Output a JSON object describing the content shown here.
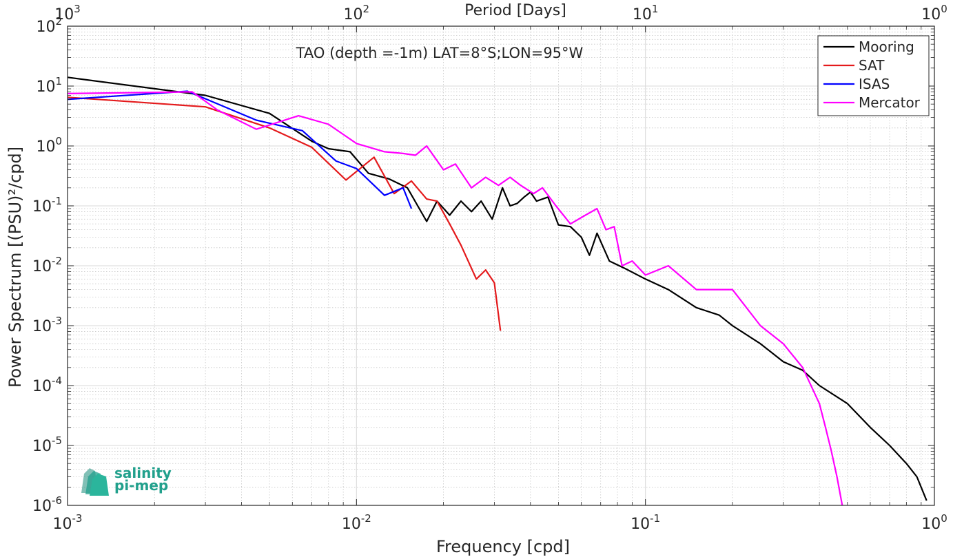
{
  "chart_data": {
    "type": "line",
    "title": "TAO (depth =-1m) LAT=8°S;LON=95°W",
    "xlabel": "Frequency [cpd]",
    "ylabel": "Power Spectrum [(PSU)²/cpd]",
    "x2label": "Period [Days]",
    "xscale": "log",
    "yscale": "log",
    "xlim": [
      0.001,
      1
    ],
    "ylim": [
      1e-06,
      100
    ],
    "x_ticks": [
      {
        "base": "10",
        "exp": "-3"
      },
      {
        "base": "10",
        "exp": "-2"
      },
      {
        "base": "10",
        "exp": "-1"
      },
      {
        "base": "10",
        "exp": "0"
      }
    ],
    "x2_ticks": [
      {
        "base": "10",
        "exp": "3"
      },
      {
        "base": "10",
        "exp": "2"
      },
      {
        "base": "10",
        "exp": "1"
      },
      {
        "base": "10",
        "exp": "0"
      }
    ],
    "y_ticks": [
      {
        "base": "10",
        "exp": "2"
      },
      {
        "base": "10",
        "exp": "1"
      },
      {
        "base": "10",
        "exp": "0"
      },
      {
        "base": "10",
        "exp": "-1"
      },
      {
        "base": "10",
        "exp": "-2"
      },
      {
        "base": "10",
        "exp": "-3"
      },
      {
        "base": "10",
        "exp": "-4"
      },
      {
        "base": "10",
        "exp": "-5"
      },
      {
        "base": "10",
        "exp": "-6"
      }
    ],
    "grid": true,
    "legend_position": "top-right",
    "series": [
      {
        "name": "Mooring",
        "color": "#000000",
        "x": [
          0.001,
          0.003,
          0.005,
          0.007,
          0.008,
          0.0095,
          0.011,
          0.013,
          0.015,
          0.0165,
          0.0175,
          0.019,
          0.021,
          0.023,
          0.025,
          0.027,
          0.0295,
          0.032,
          0.034,
          0.036,
          0.038,
          0.04,
          0.042,
          0.046,
          0.05,
          0.055,
          0.06,
          0.064,
          0.068,
          0.075,
          0.085,
          0.1,
          0.12,
          0.15,
          0.18,
          0.2,
          0.25,
          0.3,
          0.35,
          0.4,
          0.5,
          0.6,
          0.7,
          0.8,
          0.87,
          0.94
        ],
        "values": [
          14,
          7,
          3.5,
          1.2,
          0.9,
          0.8,
          0.35,
          0.28,
          0.2,
          0.09,
          0.055,
          0.12,
          0.07,
          0.12,
          0.08,
          0.12,
          0.06,
          0.2,
          0.1,
          0.11,
          0.14,
          0.17,
          0.12,
          0.14,
          0.048,
          0.045,
          0.03,
          0.015,
          0.035,
          0.012,
          0.009,
          0.006,
          0.004,
          0.002,
          0.0015,
          0.001,
          0.0005,
          0.00025,
          0.00018,
          0.0001,
          5e-05,
          2e-05,
          1e-05,
          5e-06,
          3e-06,
          1.2e-06
        ]
      },
      {
        "name": "SAT",
        "color": "#e41a1c",
        "x": [
          0.001,
          0.003,
          0.005,
          0.007,
          0.0092,
          0.0115,
          0.0135,
          0.0155,
          0.0175,
          0.019,
          0.021,
          0.023,
          0.026,
          0.028,
          0.03,
          0.0315
        ],
        "values": [
          6.5,
          4.5,
          2.0,
          0.95,
          0.27,
          0.65,
          0.16,
          0.26,
          0.13,
          0.12,
          0.05,
          0.022,
          0.006,
          0.0085,
          0.0052,
          0.00082
        ]
      },
      {
        "name": "ISAS",
        "color": "#0000ff",
        "x": [
          0.001,
          0.0026,
          0.0045,
          0.0065,
          0.0085,
          0.01,
          0.0125,
          0.0145,
          0.0155
        ],
        "values": [
          6.0,
          8.2,
          2.7,
          1.8,
          0.56,
          0.42,
          0.15,
          0.2,
          0.09
        ]
      },
      {
        "name": "Mercator",
        "color": "#ff00ff",
        "x": [
          0.001,
          0.0027,
          0.0033,
          0.0045,
          0.0063,
          0.008,
          0.01,
          0.0125,
          0.0145,
          0.016,
          0.0175,
          0.02,
          0.022,
          0.025,
          0.028,
          0.031,
          0.034,
          0.037,
          0.041,
          0.044,
          0.049,
          0.055,
          0.062,
          0.068,
          0.073,
          0.078,
          0.083,
          0.09,
          0.1,
          0.12,
          0.15,
          0.2,
          0.25,
          0.3,
          0.35,
          0.4,
          0.42,
          0.44,
          0.46,
          0.48
        ],
        "values": [
          7.5,
          8.0,
          4.0,
          1.9,
          3.2,
          2.3,
          1.1,
          0.8,
          0.75,
          0.7,
          1.0,
          0.4,
          0.5,
          0.2,
          0.3,
          0.22,
          0.3,
          0.22,
          0.16,
          0.2,
          0.1,
          0.05,
          0.07,
          0.09,
          0.04,
          0.045,
          0.01,
          0.012,
          0.007,
          0.01,
          0.004,
          0.004,
          0.001,
          0.0005,
          0.0002,
          5e-05,
          2e-05,
          8e-06,
          3e-06,
          1e-06
        ]
      }
    ]
  },
  "logo": {
    "line1": "salinity",
    "line2": "pi-mep",
    "color": "#21a08c"
  }
}
